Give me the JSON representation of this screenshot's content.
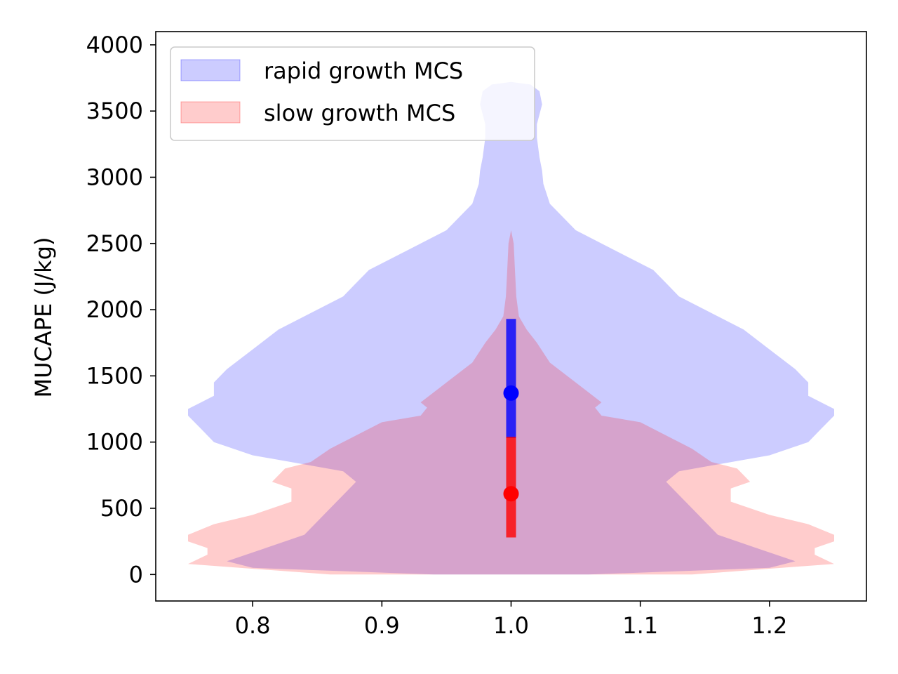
{
  "chart_data": {
    "type": "violin",
    "title": "",
    "xlabel": "",
    "ylabel": "MUCAPE (J/kg)",
    "xlim": [
      0.725,
      1.275
    ],
    "ylim": [
      -200,
      4100
    ],
    "xticks": [
      0.8,
      0.9,
      1.0,
      1.1,
      1.2
    ],
    "xtick_labels": [
      "0.8",
      "0.9",
      "1.0",
      "1.1",
      "1.2"
    ],
    "yticks": [
      0,
      500,
      1000,
      1500,
      2000,
      2500,
      3000,
      3500,
      4000
    ],
    "ytick_labels": [
      "0",
      "500",
      "1000",
      "1500",
      "2000",
      "2500",
      "3000",
      "3500",
      "4000"
    ],
    "grid": false,
    "legend_position": "top-left",
    "position": 1.0,
    "series": [
      {
        "name": "rapid growth MCS",
        "color": "#0000ff",
        "fill_opacity": 0.2,
        "median": 1370,
        "q1": 1030,
        "q3": 1930,
        "profile": [
          [
            0,
            0.06
          ],
          [
            50,
            0.2
          ],
          [
            100,
            0.22
          ],
          [
            200,
            0.19
          ],
          [
            300,
            0.16
          ],
          [
            500,
            0.14
          ],
          [
            600,
            0.13
          ],
          [
            700,
            0.12
          ],
          [
            780,
            0.13
          ],
          [
            900,
            0.2
          ],
          [
            1000,
            0.23
          ],
          [
            1100,
            0.24
          ],
          [
            1200,
            0.25
          ],
          [
            1250,
            0.25
          ],
          [
            1300,
            0.24
          ],
          [
            1350,
            0.23
          ],
          [
            1450,
            0.23
          ],
          [
            1550,
            0.22
          ],
          [
            1700,
            0.2
          ],
          [
            1850,
            0.18
          ],
          [
            2000,
            0.15
          ],
          [
            2100,
            0.13
          ],
          [
            2200,
            0.12
          ],
          [
            2300,
            0.11
          ],
          [
            2450,
            0.08
          ],
          [
            2600,
            0.05
          ],
          [
            2800,
            0.03
          ],
          [
            2950,
            0.025
          ],
          [
            3050,
            0.024
          ],
          [
            3150,
            0.022
          ],
          [
            3300,
            0.02
          ],
          [
            3400,
            0.02
          ],
          [
            3550,
            0.024
          ],
          [
            3650,
            0.022
          ],
          [
            3700,
            0.015
          ],
          [
            3720,
            0
          ]
        ]
      },
      {
        "name": "slow growth MCS",
        "color": "#ff0000",
        "fill_opacity": 0.2,
        "median": 610,
        "q1": 280,
        "q3": 1040,
        "profile": [
          [
            0,
            0.14
          ],
          [
            80,
            0.25
          ],
          [
            150,
            0.235
          ],
          [
            200,
            0.235
          ],
          [
            250,
            0.25
          ],
          [
            300,
            0.25
          ],
          [
            380,
            0.23
          ],
          [
            450,
            0.2
          ],
          [
            550,
            0.17
          ],
          [
            650,
            0.17
          ],
          [
            700,
            0.185
          ],
          [
            800,
            0.175
          ],
          [
            850,
            0.155
          ],
          [
            950,
            0.14
          ],
          [
            1050,
            0.12
          ],
          [
            1150,
            0.1
          ],
          [
            1200,
            0.07
          ],
          [
            1260,
            0.065
          ],
          [
            1300,
            0.07
          ],
          [
            1450,
            0.05
          ],
          [
            1600,
            0.03
          ],
          [
            1750,
            0.02
          ],
          [
            1850,
            0.012
          ],
          [
            1950,
            0.006
          ],
          [
            2100,
            0.004
          ],
          [
            2300,
            0.003
          ],
          [
            2500,
            0.002
          ],
          [
            2600,
            0
          ]
        ]
      }
    ]
  }
}
